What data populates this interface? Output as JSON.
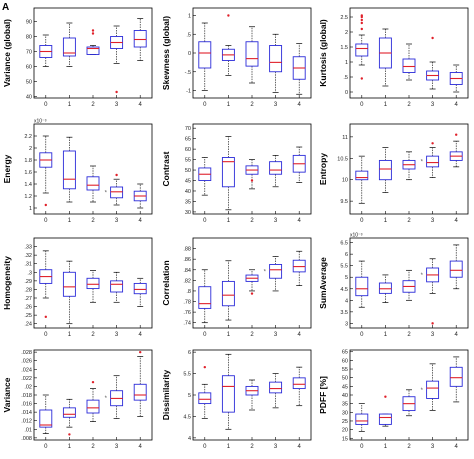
{
  "figure": {
    "panel_label": "A"
  },
  "colors": {
    "box": "#2b2bd9",
    "median": "#e0202a",
    "outlier": "#e0202a",
    "whisker": "#000000",
    "frame": "#000000",
    "star": "#555555"
  },
  "chart_data": [
    {
      "type": "box",
      "title": "",
      "ylabel": "Variance (global)",
      "xlabel": "",
      "categories": [
        "0",
        "1",
        "2",
        "3",
        "4"
      ],
      "ylim": [
        39,
        99
      ],
      "yticks": [
        40,
        50,
        60,
        70,
        80,
        90
      ],
      "exponent": "",
      "grid": false,
      "boxes": [
        {
          "min": 60,
          "q1": 66,
          "median": 70,
          "q3": 74,
          "max": 81,
          "outliers": []
        },
        {
          "min": 60,
          "q1": 67,
          "median": 69,
          "q3": 79,
          "max": 89,
          "outliers": []
        },
        {
          "min": 68,
          "q1": 68,
          "median": 72,
          "q3": 73,
          "max": 74,
          "outliers": [
            82,
            84
          ]
        },
        {
          "min": 62,
          "q1": 72,
          "median": 76,
          "q3": 80,
          "max": 87,
          "outliers": [
            43
          ]
        },
        {
          "min": 64,
          "q1": 73,
          "median": 78,
          "q3": 84,
          "max": 92,
          "outliers": []
        }
      ],
      "significance": []
    },
    {
      "type": "box",
      "title": "",
      "ylabel": "Skewness (global)",
      "xlabel": "",
      "categories": [
        "0",
        "1",
        "2",
        "3",
        "4"
      ],
      "ylim": [
        -1.2,
        1.2
      ],
      "yticks": [
        -1,
        -0.5,
        0,
        0.5,
        1
      ],
      "exponent": "",
      "grid": false,
      "boxes": [
        {
          "min": -1.0,
          "q1": -0.4,
          "median": 0.0,
          "q3": 0.3,
          "max": 0.8,
          "outliers": []
        },
        {
          "min": -0.6,
          "q1": -0.2,
          "median": -0.05,
          "q3": 0.1,
          "max": 0.2,
          "outliers": [
            1.0
          ]
        },
        {
          "min": -0.8,
          "q1": -0.35,
          "median": -0.15,
          "q3": 0.3,
          "max": 0.7,
          "outliers": []
        },
        {
          "min": -1.05,
          "q1": -0.5,
          "median": -0.25,
          "q3": 0.2,
          "max": 0.5,
          "outliers": []
        },
        {
          "min": -1.1,
          "q1": -0.7,
          "median": -0.4,
          "q3": -0.1,
          "max": 0.25,
          "outliers": []
        }
      ],
      "significance": []
    },
    {
      "type": "box",
      "title": "",
      "ylabel": "Kurtosis (global)",
      "xlabel": "",
      "categories": [
        "0",
        "1",
        "2",
        "3",
        "4"
      ],
      "ylim": [
        -0.2,
        2.8
      ],
      "yticks": [
        0,
        0.5,
        1,
        1.5,
        2,
        2.5
      ],
      "exponent": "",
      "grid": false,
      "boxes": [
        {
          "min": 0.9,
          "q1": 1.2,
          "median": 1.45,
          "q3": 1.6,
          "max": 1.9,
          "outliers": [
            0.45,
            2.1,
            2.3,
            2.4,
            2.5,
            2.55
          ]
        },
        {
          "min": 0.2,
          "q1": 0.8,
          "median": 1.3,
          "q3": 1.8,
          "max": 2.1,
          "outliers": []
        },
        {
          "min": 0.4,
          "q1": 0.65,
          "median": 0.85,
          "q3": 1.1,
          "max": 1.6,
          "outliers": []
        },
        {
          "min": 0.1,
          "q1": 0.4,
          "median": 0.55,
          "q3": 0.7,
          "max": 1.0,
          "outliers": [
            1.8
          ]
        },
        {
          "min": 0.0,
          "q1": 0.25,
          "median": 0.45,
          "q3": 0.65,
          "max": 0.9,
          "outliers": []
        }
      ],
      "significance": []
    },
    {
      "type": "box",
      "title": "",
      "ylabel": "Energy",
      "xlabel": "",
      "categories": [
        "0",
        "1",
        "2",
        "3",
        "4"
      ],
      "ylim": [
        0.9,
        2.4
      ],
      "yticks": [
        1,
        1.2,
        1.4,
        1.6,
        1.8,
        2,
        2.2
      ],
      "exponent": "x10⁻³",
      "grid": false,
      "boxes": [
        {
          "min": 1.25,
          "q1": 1.68,
          "median": 1.8,
          "q3": 1.92,
          "max": 2.2,
          "outliers": [
            1.05
          ]
        },
        {
          "min": 1.1,
          "q1": 1.32,
          "median": 1.48,
          "q3": 1.95,
          "max": 2.18,
          "outliers": []
        },
        {
          "min": 1.1,
          "q1": 1.3,
          "median": 1.38,
          "q3": 1.52,
          "max": 1.7,
          "outliers": []
        },
        {
          "min": 1.05,
          "q1": 1.17,
          "median": 1.27,
          "q3": 1.35,
          "max": 1.48,
          "outliers": [
            1.55
          ]
        },
        {
          "min": 1.0,
          "q1": 1.12,
          "median": 1.2,
          "q3": 1.28,
          "max": 1.4,
          "outliers": []
        }
      ],
      "significance": [
        3
      ]
    },
    {
      "type": "box",
      "title": "",
      "ylabel": "Contrast",
      "xlabel": "",
      "categories": [
        "0",
        "1",
        "2",
        "3",
        "4"
      ],
      "ylim": [
        29,
        72
      ],
      "yticks": [
        30,
        35,
        40,
        45,
        50,
        55,
        60,
        65,
        70
      ],
      "exponent": "",
      "grid": false,
      "boxes": [
        {
          "min": 38,
          "q1": 45,
          "median": 48,
          "q3": 51,
          "max": 56,
          "outliers": []
        },
        {
          "min": 31,
          "q1": 42,
          "median": 54,
          "q3": 56,
          "max": 66,
          "outliers": []
        },
        {
          "min": 41,
          "q1": 48,
          "median": 50,
          "q3": 52,
          "max": 55,
          "outliers": [
            45
          ]
        },
        {
          "min": 42,
          "q1": 48,
          "median": 50,
          "q3": 54,
          "max": 57,
          "outliers": []
        },
        {
          "min": 44,
          "q1": 49,
          "median": 53,
          "q3": 57,
          "max": 61,
          "outliers": []
        }
      ],
      "significance": []
    },
    {
      "type": "box",
      "title": "",
      "ylabel": "Entropy",
      "xlabel": "",
      "categories": [
        "0",
        "1",
        "2",
        "3",
        "4"
      ],
      "ylim": [
        9.2,
        11.3
      ],
      "yticks": [
        9.5,
        10,
        10.5,
        11
      ],
      "exponent": "",
      "grid": false,
      "boxes": [
        {
          "min": 9.45,
          "q1": 10.0,
          "median": 10.05,
          "q3": 10.2,
          "max": 10.55,
          "outliers": []
        },
        {
          "min": 9.7,
          "q1": 10.0,
          "median": 10.25,
          "q3": 10.45,
          "max": 10.75,
          "outliers": []
        },
        {
          "min": 10.0,
          "q1": 10.25,
          "median": 10.35,
          "q3": 10.45,
          "max": 10.65,
          "outliers": []
        },
        {
          "min": 10.05,
          "q1": 10.3,
          "median": 10.4,
          "q3": 10.55,
          "max": 10.75,
          "outliers": [
            10.85
          ]
        },
        {
          "min": 10.3,
          "q1": 10.45,
          "median": 10.55,
          "q3": 10.65,
          "max": 10.9,
          "outliers": [
            11.05
          ]
        }
      ],
      "significance": [
        3
      ]
    },
    {
      "type": "box",
      "title": "",
      "ylabel": "Homogeneity",
      "xlabel": "",
      "categories": [
        "0",
        "1",
        "2",
        "3",
        "4"
      ],
      "ylim": [
        0.235,
        0.34
      ],
      "yticks": [
        0.24,
        0.25,
        0.26,
        0.27,
        0.28,
        0.29,
        0.3,
        0.31,
        0.32,
        0.33
      ],
      "exponent": "",
      "grid": false,
      "boxes": [
        {
          "min": 0.27,
          "q1": 0.287,
          "median": 0.295,
          "q3": 0.303,
          "max": 0.325,
          "outliers": [
            0.248
          ]
        },
        {
          "min": 0.24,
          "q1": 0.272,
          "median": 0.283,
          "q3": 0.3,
          "max": 0.313,
          "outliers": []
        },
        {
          "min": 0.265,
          "q1": 0.281,
          "median": 0.286,
          "q3": 0.293,
          "max": 0.302,
          "outliers": []
        },
        {
          "min": 0.265,
          "q1": 0.277,
          "median": 0.286,
          "q3": 0.29,
          "max": 0.3,
          "outliers": []
        },
        {
          "min": 0.26,
          "q1": 0.275,
          "median": 0.28,
          "q3": 0.287,
          "max": 0.293,
          "outliers": []
        }
      ],
      "significance": []
    },
    {
      "type": "box",
      "title": "",
      "ylabel": "Correlation",
      "xlabel": "",
      "categories": [
        "0",
        "1",
        "2",
        "3",
        "4"
      ],
      "ylim": [
        0.73,
        0.9
      ],
      "yticks": [
        0.74,
        0.76,
        0.78,
        0.8,
        0.82,
        0.84,
        0.86,
        0.88
      ],
      "exponent": "",
      "grid": false,
      "boxes": [
        {
          "min": 0.74,
          "q1": 0.767,
          "median": 0.776,
          "q3": 0.808,
          "max": 0.84,
          "outliers": []
        },
        {
          "min": 0.745,
          "q1": 0.772,
          "median": 0.792,
          "q3": 0.818,
          "max": 0.857,
          "outliers": []
        },
        {
          "min": 0.8,
          "q1": 0.818,
          "median": 0.824,
          "q3": 0.83,
          "max": 0.84,
          "outliers": [
            0.795
          ]
        },
        {
          "min": 0.8,
          "q1": 0.824,
          "median": 0.84,
          "q3": 0.85,
          "max": 0.865,
          "outliers": []
        },
        {
          "min": 0.81,
          "q1": 0.836,
          "median": 0.846,
          "q3": 0.858,
          "max": 0.875,
          "outliers": []
        }
      ],
      "significance": [
        3
      ]
    },
    {
      "type": "box",
      "title": "",
      "ylabel": "SumAverage",
      "xlabel": "",
      "categories": [
        "0",
        "1",
        "2",
        "3",
        "4"
      ],
      "ylim": [
        2.8,
        6.7
      ],
      "yticks": [
        3,
        3.5,
        4,
        4.5,
        5,
        5.5,
        6,
        6.5
      ],
      "exponent": "x10⁻³",
      "grid": false,
      "boxes": [
        {
          "min": 3.7,
          "q1": 4.2,
          "median": 4.5,
          "q3": 5.0,
          "max": 5.7,
          "outliers": []
        },
        {
          "min": 3.9,
          "q1": 4.3,
          "median": 4.5,
          "q3": 4.75,
          "max": 5.1,
          "outliers": []
        },
        {
          "min": 4.0,
          "q1": 4.35,
          "median": 4.6,
          "q3": 4.85,
          "max": 5.3,
          "outliers": []
        },
        {
          "min": 4.3,
          "q1": 4.8,
          "median": 5.1,
          "q3": 5.4,
          "max": 5.8,
          "outliers": [
            3.0
          ]
        },
        {
          "min": 4.5,
          "q1": 5.0,
          "median": 5.3,
          "q3": 5.7,
          "max": 6.4,
          "outliers": []
        }
      ],
      "significance": [
        3
      ]
    },
    {
      "type": "box",
      "title": "",
      "ylabel": "Variance",
      "xlabel": "",
      "categories": [
        "0",
        "1",
        "2",
        "3",
        "4"
      ],
      "ylim": [
        0.0075,
        0.0285
      ],
      "yticks": [
        0.008,
        0.01,
        0.012,
        0.014,
        0.016,
        0.018,
        0.02,
        0.022,
        0.024,
        0.026,
        0.028
      ],
      "exponent": "",
      "grid": false,
      "boxes": [
        {
          "min": 0.009,
          "q1": 0.0105,
          "median": 0.011,
          "q3": 0.0145,
          "max": 0.018,
          "outliers": []
        },
        {
          "min": 0.0105,
          "q1": 0.0128,
          "median": 0.0135,
          "q3": 0.015,
          "max": 0.017,
          "outliers": [
            0.0088
          ]
        },
        {
          "min": 0.0118,
          "q1": 0.0138,
          "median": 0.015,
          "q3": 0.0168,
          "max": 0.0195,
          "outliers": [
            0.021
          ]
        },
        {
          "min": 0.0125,
          "q1": 0.0155,
          "median": 0.0172,
          "q3": 0.019,
          "max": 0.0225,
          "outliers": []
        },
        {
          "min": 0.013,
          "q1": 0.0168,
          "median": 0.018,
          "q3": 0.0205,
          "max": 0.027,
          "outliers": [
            0.028
          ]
        }
      ],
      "significance": [
        3
      ]
    },
    {
      "type": "box",
      "title": "",
      "ylabel": "Dissimilarity",
      "xlabel": "",
      "categories": [
        "0",
        "1",
        "2",
        "3",
        "4"
      ],
      "ylim": [
        3.95,
        6.05
      ],
      "yticks": [
        4,
        4.5,
        5,
        5.5,
        6
      ],
      "exponent": "",
      "grid": false,
      "boxes": [
        {
          "min": 4.45,
          "q1": 4.8,
          "median": 4.9,
          "q3": 5.05,
          "max": 5.25,
          "outliers": [
            5.65
          ]
        },
        {
          "min": 4.2,
          "q1": 4.6,
          "median": 5.2,
          "q3": 5.45,
          "max": 5.95,
          "outliers": []
        },
        {
          "min": 4.65,
          "q1": 5.0,
          "median": 5.1,
          "q3": 5.2,
          "max": 5.35,
          "outliers": []
        },
        {
          "min": 4.7,
          "q1": 5.05,
          "median": 5.15,
          "q3": 5.3,
          "max": 5.5,
          "outliers": []
        },
        {
          "min": 4.75,
          "q1": 5.15,
          "median": 5.25,
          "q3": 5.4,
          "max": 5.65,
          "outliers": []
        }
      ],
      "significance": []
    },
    {
      "type": "box",
      "title": "",
      "ylabel": "PDFF [%]",
      "xlabel": "",
      "categories": [
        "0",
        "1",
        "2",
        "3",
        "4"
      ],
      "ylim": [
        14,
        66
      ],
      "yticks": [
        15,
        20,
        25,
        30,
        35,
        40,
        45,
        50,
        55,
        60,
        65
      ],
      "exponent": "",
      "grid": false,
      "boxes": [
        {
          "min": 19,
          "q1": 23,
          "median": 25,
          "q3": 29,
          "max": 35,
          "outliers": []
        },
        {
          "min": 22,
          "q1": 23,
          "median": 27,
          "q3": 29,
          "max": 29,
          "outliers": [
            39
          ]
        },
        {
          "min": 28,
          "q1": 31,
          "median": 35,
          "q3": 39,
          "max": 43,
          "outliers": []
        },
        {
          "min": 31,
          "q1": 38,
          "median": 44,
          "q3": 48,
          "max": 58,
          "outliers": []
        },
        {
          "min": 36,
          "q1": 45,
          "median": 50,
          "q3": 56,
          "max": 62,
          "outliers": []
        }
      ],
      "significance": [
        3
      ]
    }
  ]
}
